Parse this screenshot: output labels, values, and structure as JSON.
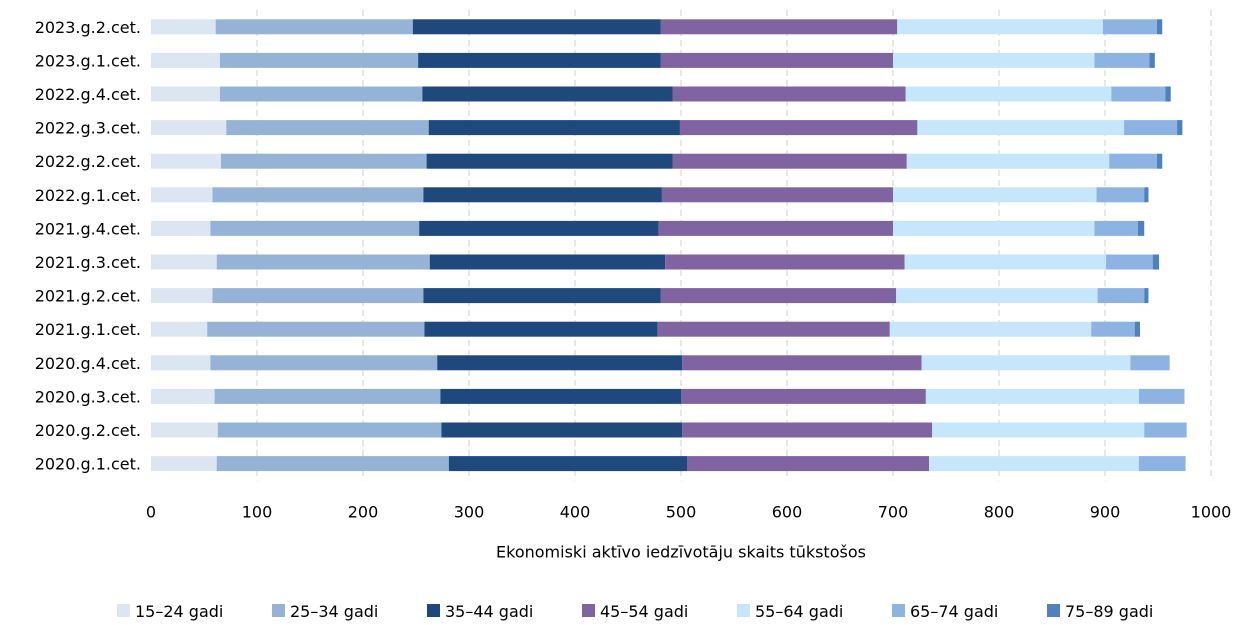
{
  "chart_data": {
    "type": "bar",
    "orientation": "horizontal",
    "stacked": true,
    "title": "",
    "xlabel": "Ekonomiski aktīvo iedzīvotāju skaits tūkstošos",
    "ylabel": "",
    "xlim": [
      0,
      1000
    ],
    "xticks": [
      0,
      100,
      200,
      300,
      400,
      500,
      600,
      700,
      800,
      900,
      1000
    ],
    "grid": "vertical-dashed",
    "legend": "bottom",
    "categories": [
      "2023.g.2.cet.",
      "2023.g.1.cet.",
      "2022.g.4.cet.",
      "2022.g.3.cet.",
      "2022.g.2.cet.",
      "2022.g.1.cet.",
      "2021.g.4.cet.",
      "2021.g.3.cet.",
      "2021.g.2.cet.",
      "2021.g.1.cet.",
      "2020.g.4.cet.",
      "2020.g.3.cet.",
      "2020.g.2.cet.",
      "2020.g.1.cet."
    ],
    "series": [
      {
        "name": "15–24 gadi",
        "color": "#dce6f2",
        "values": [
          61,
          65,
          65,
          71,
          66,
          58,
          56,
          62,
          58,
          53,
          56,
          60,
          63,
          62
        ]
      },
      {
        "name": "25–34 gadi",
        "color": "#95b3d7",
        "values": [
          186,
          187,
          191,
          191,
          194,
          199,
          197,
          201,
          199,
          205,
          214,
          213,
          211,
          219
        ]
      },
      {
        "name": "35–44 gadi",
        "color": "#1f497d",
        "values": [
          234,
          229,
          236,
          237,
          232,
          225,
          226,
          222,
          224,
          220,
          231,
          227,
          227,
          225
        ]
      },
      {
        "name": "45–54 gadi",
        "color": "#8064a2",
        "values": [
          223,
          219,
          220,
          224,
          221,
          218,
          221,
          226,
          222,
          219,
          226,
          231,
          236,
          228
        ]
      },
      {
        "name": "55–64 gadi",
        "color": "#c6e7fb",
        "values": [
          194,
          190,
          194,
          195,
          191,
          192,
          190,
          190,
          190,
          190,
          197,
          201,
          200,
          198
        ]
      },
      {
        "name": "65–74 gadi",
        "color": "#8db3e2",
        "values": [
          51,
          52,
          51,
          50,
          45,
          45,
          41,
          44,
          44,
          41,
          37,
          43,
          40,
          44
        ]
      },
      {
        "name": "75–89 gadi",
        "color": "#4f81bd",
        "values": [
          5,
          5,
          5,
          5,
          5,
          4,
          6,
          6,
          4,
          5,
          0,
          0,
          0,
          0
        ]
      }
    ]
  }
}
